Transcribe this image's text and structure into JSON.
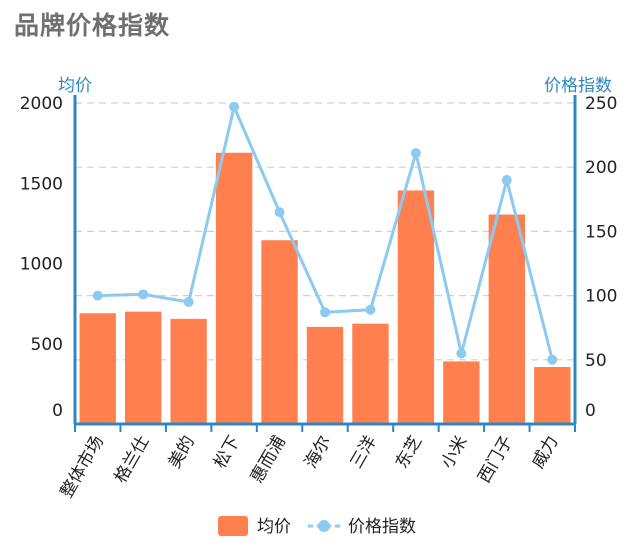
{
  "page": {
    "title": "品牌价格指数"
  },
  "chart_data": {
    "type": "bar",
    "categories": [
      "整体市场",
      "格兰仕",
      "美的",
      "松下",
      "惠而浦",
      "海尔",
      "三洋",
      "东芝",
      "小米",
      "西门子",
      "威力"
    ],
    "series": [
      {
        "name": "均价",
        "type": "bar",
        "axis": "left",
        "color": "#ff7f4f",
        "values": [
          690,
          700,
          655,
          1690,
          1145,
          605,
          625,
          1455,
          390,
          1305,
          355
        ]
      },
      {
        "name": "价格指数",
        "type": "line",
        "axis": "right",
        "color": "#8ccaf2",
        "values": [
          100,
          101,
          95,
          247,
          165,
          87,
          89,
          211,
          55,
          190,
          50
        ]
      }
    ],
    "y_left": {
      "label": "均价",
      "lim": [
        0,
        2000
      ],
      "ticks": [
        0,
        500,
        1000,
        1500,
        2000
      ]
    },
    "y_right": {
      "label": "价格指数",
      "lim": [
        0,
        250
      ],
      "ticks": [
        0,
        50,
        100,
        150,
        200,
        250
      ]
    },
    "grid": true,
    "legend_position": "bottom",
    "colors": {
      "axis": "#2e87c2",
      "grid": "#d0d0d0"
    }
  }
}
